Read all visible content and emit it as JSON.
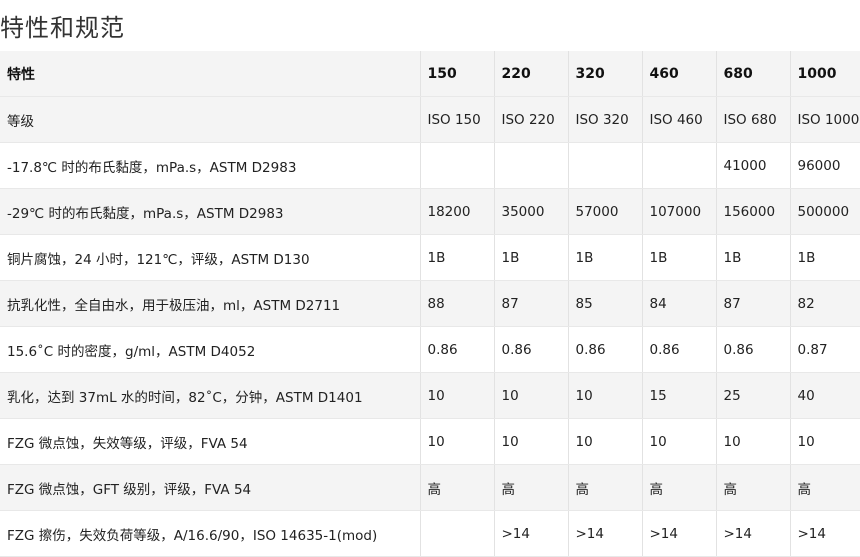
{
  "page": {
    "title": "特性和规范"
  },
  "table": {
    "headers": [
      "特性",
      "150",
      "220",
      "320",
      "460",
      "680",
      "1000"
    ],
    "rows": [
      [
        "等级",
        "ISO 150",
        "ISO 220",
        "ISO 320",
        "ISO 460",
        "ISO 680",
        "ISO 1000"
      ],
      [
        "-17.8℃ 时的布氏黏度，mPa.s，ASTM D2983",
        "",
        "",
        "",
        "",
        "41000",
        "96000"
      ],
      [
        "-29℃ 时的布氏黏度，mPa.s，ASTM D2983",
        "18200",
        "35000",
        "57000",
        "107000",
        "156000",
        "500000"
      ],
      [
        "铜片腐蚀，24 小时，121℃，评级，ASTM D130",
        "1B",
        "1B",
        "1B",
        "1B",
        "1B",
        "1B"
      ],
      [
        "抗乳化性，全自由水，用于极压油，ml，ASTM D2711",
        "88",
        "87",
        "85",
        "84",
        "87",
        "82"
      ],
      [
        "15.6˚C 时的密度，g/ml，ASTM D4052",
        "0.86",
        "0.86",
        "0.86",
        "0.86",
        "0.86",
        "0.87"
      ],
      [
        "乳化，达到 37mL 水的时间，82˚C，分钟，ASTM D1401",
        "10",
        "10",
        "10",
        "15",
        "25",
        "40"
      ],
      [
        "FZG 微点蚀，失效等级，评级，FVA 54",
        "10",
        "10",
        "10",
        "10",
        "10",
        "10"
      ],
      [
        "FZG 微点蚀，GFT 级别，评级，FVA 54",
        "高",
        "高",
        "高",
        "高",
        "高",
        "高"
      ],
      [
        "FZG 擦伤，失效负荷等级，A/16.6/90，ISO 14635-1(mod)",
        "",
        ">14",
        ">14",
        ">14",
        ">14",
        ">14"
      ]
    ]
  }
}
